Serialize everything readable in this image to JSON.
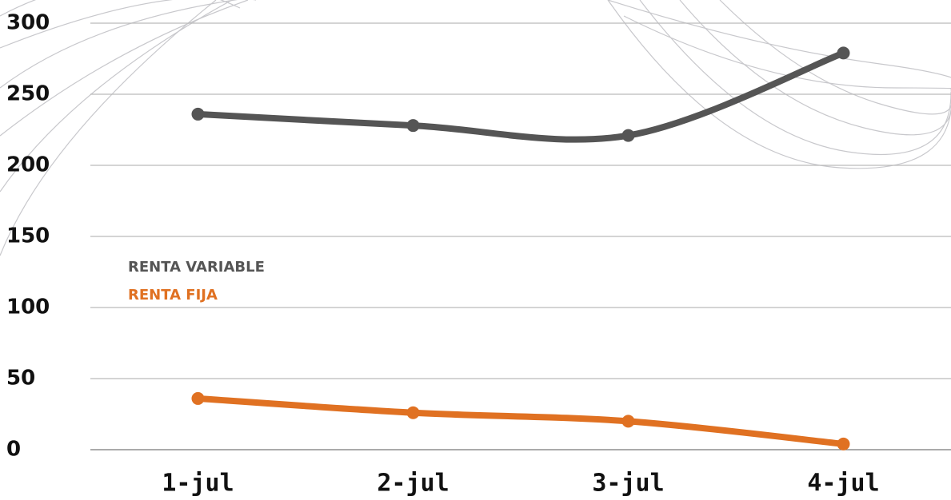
{
  "chart_data": {
    "type": "line",
    "categories": [
      "1-jul",
      "2-jul",
      "3-jul",
      "4-jul"
    ],
    "series": [
      {
        "name": "RENTA VARIABLE",
        "color": "#555555",
        "values": [
          236,
          228,
          221,
          279
        ]
      },
      {
        "name": "RENTA FIJA",
        "color": "#e07122",
        "values": [
          36,
          26,
          20,
          4
        ]
      }
    ],
    "ylim": [
      0,
      300
    ],
    "yticks": [
      0,
      50,
      100,
      150,
      200,
      250,
      300
    ],
    "grid": true,
    "legend": "left"
  }
}
